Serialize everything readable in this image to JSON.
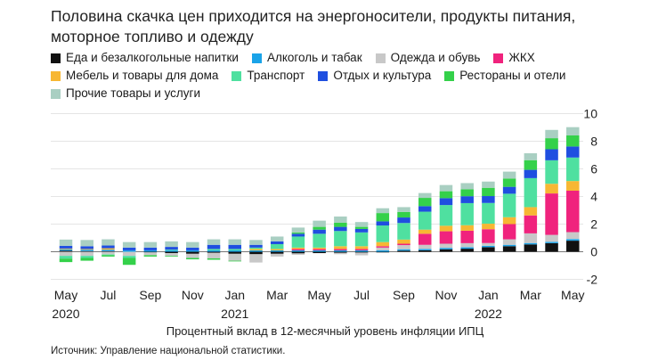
{
  "title": "Половина скачка цен приходится на энергоносители, продукты питания, моторное топливо и одежду",
  "legend": [
    [
      {
        "label": "Еда и безалкогольные напитки",
        "color": "#111111"
      },
      {
        "label": "Алкоголь и табак",
        "color": "#1aa3e8"
      },
      {
        "label": "Одежда и обувь",
        "color": "#c8c8c8"
      },
      {
        "label": "ЖКХ",
        "color": "#f0237d"
      }
    ],
    [
      {
        "label": "Мебель и товары для дома",
        "color": "#f7b733"
      },
      {
        "label": "Транспорт",
        "color": "#4fe0a0"
      },
      {
        "label": "Отдых и культура",
        "color": "#1f4fe0"
      },
      {
        "label": "Рестораны и отели",
        "color": "#34d14a"
      }
    ],
    [
      {
        "label": "Прочие товары и услуги",
        "color": "#a9cfc2"
      }
    ]
  ],
  "x_caption": "Процентный вклад в 12-месячный уровень инфляции ИПЦ",
  "source": "Источник: Управление национальной статистики.",
  "chart_data": {
    "type": "bar",
    "stacked": true,
    "categories": [
      "May 2020",
      "Jun 2020",
      "Jul 2020",
      "Aug 2020",
      "Sep 2020",
      "Oct 2020",
      "Nov 2020",
      "Dec 2020",
      "Jan 2021",
      "Feb 2021",
      "Mar 2021",
      "Apr 2021",
      "May 2021",
      "Jun 2021",
      "Jul 2021",
      "Aug 2021",
      "Sep 2021",
      "Oct 2021",
      "Nov 2021",
      "Dec 2021",
      "Jan 2022",
      "Feb 2022",
      "Mar 2022",
      "Apr 2022",
      "May 2022"
    ],
    "x_tick_labels": [
      {
        "index": 0,
        "month": "May",
        "year": "2020"
      },
      {
        "index": 2,
        "month": "Jul",
        "year": ""
      },
      {
        "index": 4,
        "month": "Sep",
        "year": ""
      },
      {
        "index": 6,
        "month": "Nov",
        "year": ""
      },
      {
        "index": 8,
        "month": "Jan",
        "year": "2021"
      },
      {
        "index": 10,
        "month": "Mar",
        "year": ""
      },
      {
        "index": 12,
        "month": "May",
        "year": ""
      },
      {
        "index": 14,
        "month": "Jul",
        "year": ""
      },
      {
        "index": 16,
        "month": "Sep",
        "year": ""
      },
      {
        "index": 18,
        "month": "Nov",
        "year": ""
      },
      {
        "index": 20,
        "month": "Jan",
        "year": "2022"
      },
      {
        "index": 22,
        "month": "Mar",
        "year": ""
      },
      {
        "index": 24,
        "month": "May",
        "year": ""
      }
    ],
    "ylim": [
      -2.6,
      10
    ],
    "yticks": [
      -2,
      0,
      2,
      4,
      6,
      8,
      10
    ],
    "ytick_labels": [
      "-2",
      "0",
      "2",
      "4",
      "6",
      "8",
      "10"
    ],
    "grid": true,
    "axis_side": "right",
    "series": [
      {
        "name": "Еда и безалкогольные напитки",
        "color": "#111111",
        "values": [
          0.08,
          0.05,
          0.05,
          0.0,
          -0.05,
          -0.1,
          -0.15,
          -0.08,
          -0.15,
          -0.18,
          -0.15,
          -0.12,
          -0.1,
          -0.08,
          -0.06,
          -0.05,
          0.08,
          0.1,
          0.18,
          0.22,
          0.33,
          0.4,
          0.53,
          0.62,
          0.8
        ]
      },
      {
        "name": "Алкоголь и табак",
        "color": "#1aa3e8",
        "values": [
          0.1,
          0.1,
          0.1,
          0.1,
          0.1,
          0.1,
          0.1,
          0.1,
          0.1,
          0.1,
          0.1,
          0.1,
          0.1,
          0.1,
          0.1,
          0.1,
          0.1,
          0.1,
          0.1,
          0.1,
          0.1,
          0.1,
          0.1,
          0.1,
          0.12
        ]
      },
      {
        "name": "Одежда и обувь",
        "color": "#c8c8c8",
        "values": [
          -0.3,
          -0.3,
          -0.2,
          -0.3,
          -0.2,
          -0.2,
          -0.3,
          -0.4,
          -0.5,
          -0.6,
          -0.2,
          -0.1,
          0.0,
          -0.1,
          -0.2,
          0.2,
          0.3,
          0.3,
          0.3,
          0.3,
          0.2,
          0.4,
          0.7,
          0.5,
          0.5
        ]
      },
      {
        "name": "ЖКХ",
        "color": "#f0237d",
        "values": [
          0.0,
          0.0,
          0.0,
          0.0,
          0.0,
          0.0,
          0.0,
          0.0,
          0.0,
          0.0,
          0.0,
          0.1,
          0.1,
          0.1,
          0.1,
          0.1,
          0.1,
          0.8,
          0.9,
          0.9,
          1.0,
          1.1,
          1.3,
          3.0,
          3.0
        ]
      },
      {
        "name": "Мебель и товары для дома",
        "color": "#f7b733",
        "values": [
          0.05,
          0.05,
          0.1,
          0.0,
          0.0,
          0.0,
          0.0,
          0.0,
          0.0,
          0.1,
          0.1,
          0.1,
          0.1,
          0.2,
          0.2,
          0.3,
          0.3,
          0.3,
          0.4,
          0.4,
          0.4,
          0.5,
          0.6,
          0.7,
          0.7
        ]
      },
      {
        "name": "Транспорт",
        "color": "#4fe0a0",
        "values": [
          -0.2,
          -0.15,
          -0.05,
          -0.15,
          0.0,
          0.05,
          0.0,
          0.1,
          0.1,
          0.1,
          0.35,
          0.8,
          1.0,
          1.1,
          1.0,
          1.2,
          1.2,
          1.3,
          1.5,
          1.6,
          1.5,
          1.7,
          2.1,
          1.7,
          1.7
        ]
      },
      {
        "name": "Отдых и культура",
        "color": "#1f4fe0",
        "values": [
          0.2,
          0.2,
          0.2,
          0.2,
          0.2,
          0.2,
          0.2,
          0.3,
          0.3,
          0.2,
          0.2,
          0.2,
          0.3,
          0.3,
          0.25,
          0.3,
          0.4,
          0.4,
          0.5,
          0.5,
          0.5,
          0.5,
          0.6,
          0.8,
          0.8
        ]
      },
      {
        "name": "Рестораны и отели",
        "color": "#34d14a",
        "values": [
          -0.25,
          -0.2,
          -0.1,
          -0.5,
          -0.1,
          -0.05,
          -0.1,
          -0.1,
          -0.05,
          0.0,
          0.0,
          0.1,
          0.2,
          0.3,
          0.15,
          0.6,
          0.4,
          0.6,
          0.5,
          0.5,
          0.6,
          0.6,
          0.7,
          0.8,
          0.8
        ]
      },
      {
        "name": "Прочие товары и услуги",
        "color": "#a9cfc2",
        "values": [
          0.45,
          0.45,
          0.45,
          0.4,
          0.4,
          0.4,
          0.4,
          0.4,
          0.4,
          0.35,
          0.35,
          0.35,
          0.45,
          0.45,
          0.35,
          0.35,
          0.35,
          0.35,
          0.45,
          0.45,
          0.45,
          0.5,
          0.5,
          0.6,
          0.6
        ]
      }
    ]
  }
}
